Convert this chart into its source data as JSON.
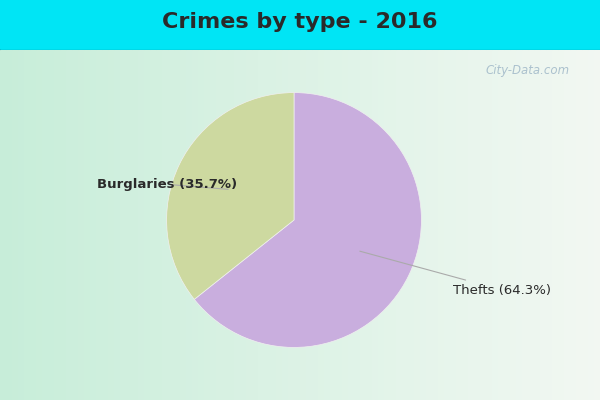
{
  "title": "Crimes by type - 2016",
  "slices": [
    {
      "label": "Thefts (64.3%)",
      "value": 64.3,
      "color": "#c9aede"
    },
    {
      "label": "Burglaries (35.7%)",
      "value": 35.7,
      "color": "#cdd9a0"
    }
  ],
  "background_top": "#00e5f5",
  "background_main_left": "#c8ecd8",
  "background_main_right": "#f0f4f8",
  "title_fontsize": 16,
  "title_fontweight": "bold",
  "title_color": "#2a2a2a",
  "label_fontsize": 9.5,
  "label_color": "#2a2a2a",
  "watermark": "City-Data.com",
  "watermark_color": "#a0b8c8"
}
